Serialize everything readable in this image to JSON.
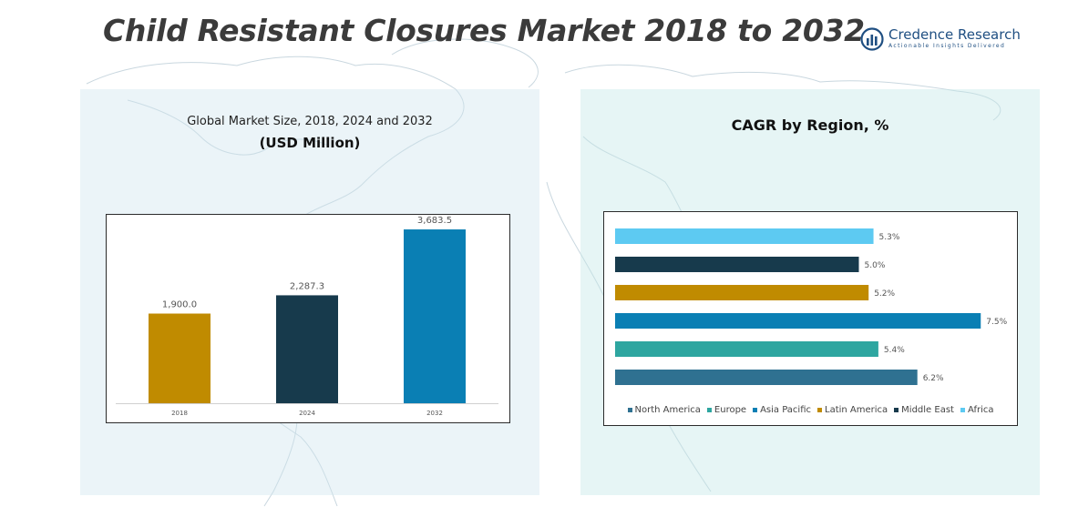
{
  "title": "Child Resistant Closures Market 2018 to 2032",
  "logo": {
    "name": "Credence Research",
    "tagline": "Actionable Insights Delivered",
    "icon": "credence-research-logo-icon"
  },
  "left_panel": {
    "title_line1": "Global Market Size, 2018, 2024 and 2032",
    "title_line2": "(USD Million)"
  },
  "right_panel": {
    "title": "CAGR by Region, %"
  },
  "chart_data": [
    {
      "type": "bar",
      "orientation": "vertical",
      "title": "Global Market Size, 2018, 2024 and 2032",
      "subtitle": "(USD Million)",
      "categories": [
        "2018",
        "2024",
        "2032"
      ],
      "values": [
        1900.0,
        2287.3,
        3683.5
      ],
      "value_labels": [
        "1,900.0",
        "2,287.3",
        "3,683.5"
      ],
      "colors": [
        "#c08b00",
        "#173a4c",
        "#0a7fb4"
      ],
      "ylim": [
        0,
        3800
      ],
      "grid": false,
      "legend": "none"
    },
    {
      "type": "bar",
      "orientation": "horizontal",
      "title": "CAGR by Region, %",
      "unit": "%",
      "series": [
        {
          "name": "North America",
          "value": 6.2,
          "label": "6.2%",
          "color": "#2f7191"
        },
        {
          "name": "Europe",
          "value": 5.4,
          "label": "5.4%",
          "color": "#2ea6a0"
        },
        {
          "name": "Asia Pacific",
          "value": 7.5,
          "label": "7.5%",
          "color": "#0a7fb4"
        },
        {
          "name": "Latin America",
          "value": 5.2,
          "label": "5.2%",
          "color": "#c08b00"
        },
        {
          "name": "Middle East",
          "value": 5.0,
          "label": "5.0%",
          "color": "#173a4c"
        },
        {
          "name": "Africa",
          "value": 5.3,
          "label": "5.3%",
          "color": "#5dcaf2"
        }
      ],
      "xlim": [
        0,
        8
      ],
      "grid": false,
      "legend": "bottom"
    }
  ]
}
